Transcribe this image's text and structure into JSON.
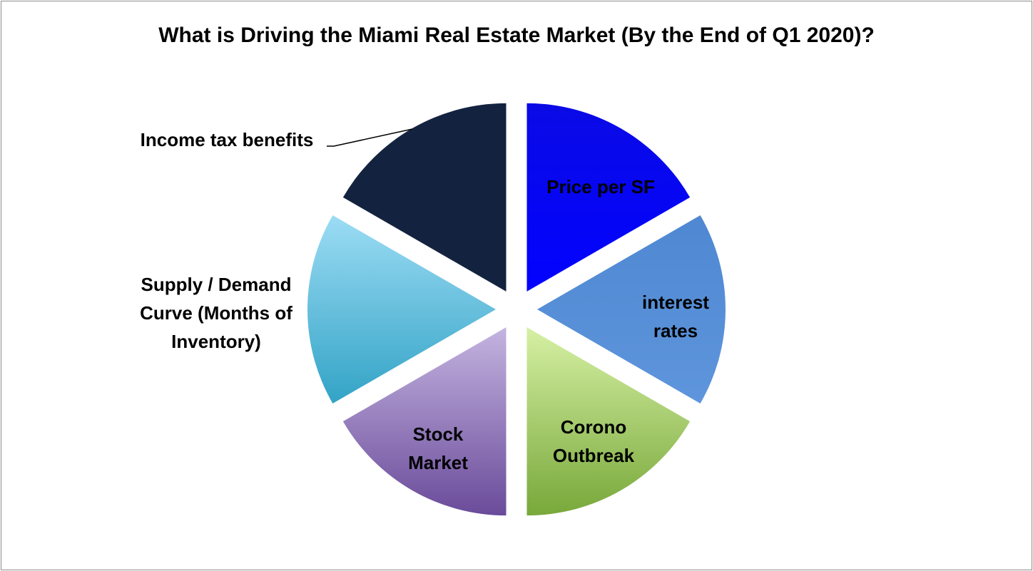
{
  "chart_data": {
    "type": "pie",
    "exploded": true,
    "title": "What is Driving the Miami Real Estate Market (By the End of Q1 2020)?",
    "categories": [
      "Price per SF",
      "interest rates",
      "Corono Outbreak",
      "Stock Market",
      "Supply / Demand Curve (Months of Inventory)",
      "Income tax benefits"
    ],
    "values": [
      16.67,
      16.67,
      16.67,
      16.67,
      16.67,
      16.67
    ],
    "label_lines": [
      [
        "Price per SF"
      ],
      [
        "interest",
        "rates"
      ],
      [
        "Corono",
        "Outbreak"
      ],
      [
        "Stock",
        "Market"
      ],
      [
        "Supply / Demand",
        "Curve (Months of",
        "Inventory)"
      ],
      [
        "Income tax benefits"
      ]
    ],
    "colors": [
      [
        "#0a0ae6",
        "#0202ff"
      ],
      [
        "#4f88d2",
        "#5e95dc"
      ],
      [
        "#d6f0a4",
        "#78a83a"
      ],
      [
        "#c4b4e0",
        "#6a4b9a"
      ],
      [
        "#9cdcf4",
        "#33a3c6"
      ],
      [
        "#13233f",
        "#13233f"
      ]
    ],
    "legend": "none",
    "data_labels": "on slices; last slice outside with leader line"
  }
}
